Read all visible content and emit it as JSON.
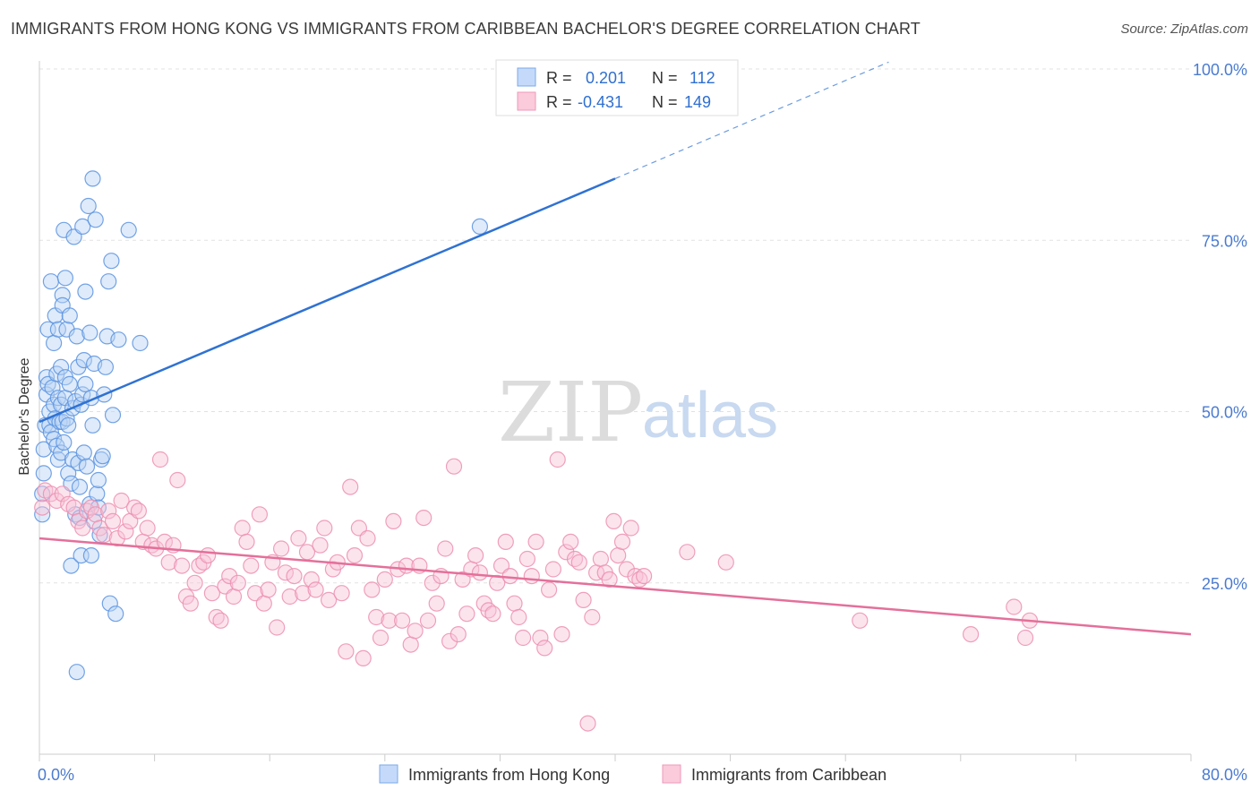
{
  "header": {
    "title": "IMMIGRANTS FROM HONG KONG VS IMMIGRANTS FROM CARIBBEAN BACHELOR'S DEGREE CORRELATION CHART",
    "source": "Source: ZipAtlas.com"
  },
  "watermark": {
    "zip": "ZIP",
    "atlas": "atlas"
  },
  "legend": {
    "r_label": "R =",
    "n_label": "N =",
    "rows": [
      {
        "r": "0.201",
        "n": "112",
        "color": "#6aa0e8",
        "fill": "#c5dafa"
      },
      {
        "r": "-0.431",
        "n": "149",
        "color": "#ec8fb0",
        "fill": "#fbcadb"
      }
    ]
  },
  "chart_data": {
    "type": "scatter",
    "title": "IMMIGRANTS FROM HONG KONG VS IMMIGRANTS FROM CARIBBEAN BACHELOR'S DEGREE CORRELATION CHART",
    "xlabel": "",
    "ylabel": "Bachelor's Degree",
    "xlim": [
      0,
      80
    ],
    "ylim": [
      0,
      105
    ],
    "x_ticks": [
      "0.0%",
      "80.0%"
    ],
    "y_ticks": [
      {
        "value": 25,
        "label": "25.0%"
      },
      {
        "value": 50,
        "label": "50.0%"
      },
      {
        "value": 75,
        "label": "75.0%"
      },
      {
        "value": 100,
        "label": "100.0%"
      }
    ],
    "grid": true,
    "legend_position": "top-center",
    "series": [
      {
        "name": "Immigrants from Hong Kong",
        "color": "#5b93e0",
        "fill": "#b9d2f5",
        "trend": {
          "x0": 0,
          "y0": 48.5,
          "x1": 40,
          "y1": 84,
          "dash_x1": 59,
          "dash_y1": 101
        },
        "points": [
          [
            0.2,
            38
          ],
          [
            0.2,
            35
          ],
          [
            0.3,
            44.5
          ],
          [
            0.3,
            41
          ],
          [
            0.4,
            48
          ],
          [
            0.5,
            52.5
          ],
          [
            0.5,
            55
          ],
          [
            0.6,
            54
          ],
          [
            0.6,
            62
          ],
          [
            0.7,
            48
          ],
          [
            0.7,
            50
          ],
          [
            0.8,
            69
          ],
          [
            0.8,
            47
          ],
          [
            0.9,
            53.5
          ],
          [
            1.0,
            60
          ],
          [
            1.0,
            51
          ],
          [
            1.0,
            46
          ],
          [
            1.1,
            64
          ],
          [
            1.1,
            49
          ],
          [
            1.2,
            55.5
          ],
          [
            1.2,
            45
          ],
          [
            1.3,
            52
          ],
          [
            1.3,
            43
          ],
          [
            1.3,
            62
          ],
          [
            1.4,
            48.5
          ],
          [
            1.5,
            44
          ],
          [
            1.5,
            56.5
          ],
          [
            1.5,
            51
          ],
          [
            1.6,
            67
          ],
          [
            1.6,
            65.5
          ],
          [
            1.6,
            48.5
          ],
          [
            1.7,
            76.5
          ],
          [
            1.7,
            45.5
          ],
          [
            1.8,
            69.5
          ],
          [
            1.8,
            52
          ],
          [
            1.8,
            55
          ],
          [
            1.9,
            62
          ],
          [
            1.9,
            49
          ],
          [
            2.0,
            48
          ],
          [
            2.0,
            41
          ],
          [
            2.1,
            64
          ],
          [
            2.1,
            54
          ],
          [
            2.2,
            39.5
          ],
          [
            2.2,
            27.5
          ],
          [
            2.3,
            50.5
          ],
          [
            2.3,
            43
          ],
          [
            2.4,
            75.5
          ],
          [
            2.5,
            51.5
          ],
          [
            2.5,
            35
          ],
          [
            2.6,
            12
          ],
          [
            2.6,
            61
          ],
          [
            2.7,
            56.5
          ],
          [
            2.7,
            42.5
          ],
          [
            2.8,
            39
          ],
          [
            2.8,
            34.5
          ],
          [
            2.9,
            51
          ],
          [
            2.9,
            29
          ],
          [
            3.0,
            77
          ],
          [
            3.0,
            52.5
          ],
          [
            3.1,
            57.5
          ],
          [
            3.1,
            44
          ],
          [
            3.2,
            67.5
          ],
          [
            3.2,
            54
          ],
          [
            3.3,
            42
          ],
          [
            3.4,
            80
          ],
          [
            3.5,
            61.5
          ],
          [
            3.5,
            36.5
          ],
          [
            3.6,
            52
          ],
          [
            3.6,
            29
          ],
          [
            3.7,
            84
          ],
          [
            3.7,
            48
          ],
          [
            3.8,
            57
          ],
          [
            3.8,
            34
          ],
          [
            3.9,
            78
          ],
          [
            4.0,
            38
          ],
          [
            4.1,
            36
          ],
          [
            4.1,
            40
          ],
          [
            4.2,
            32
          ],
          [
            4.3,
            43
          ],
          [
            4.4,
            43.5
          ],
          [
            4.5,
            52.5
          ],
          [
            4.6,
            56.5
          ],
          [
            4.7,
            61
          ],
          [
            4.8,
            69
          ],
          [
            4.9,
            22
          ],
          [
            5.0,
            72
          ],
          [
            5.1,
            49.5
          ],
          [
            5.3,
            20.5
          ],
          [
            5.5,
            60.5
          ],
          [
            6.2,
            76.5
          ],
          [
            7.0,
            60
          ],
          [
            30.6,
            77
          ]
        ]
      },
      {
        "name": "Immigrants from Caribbean",
        "color": "#ec8fb0",
        "fill": "#f8c4d6",
        "trend": {
          "x0": 0,
          "y0": 31.5,
          "x1": 80,
          "y1": 17.5
        },
        "points": [
          [
            0.2,
            36
          ],
          [
            0.4,
            38.5
          ],
          [
            0.8,
            38
          ],
          [
            1.2,
            37
          ],
          [
            1.6,
            38
          ],
          [
            2.0,
            36.5
          ],
          [
            2.4,
            36
          ],
          [
            2.7,
            34
          ],
          [
            3.0,
            33
          ],
          [
            3.3,
            35.5
          ],
          [
            3.6,
            36
          ],
          [
            3.9,
            35
          ],
          [
            4.2,
            33
          ],
          [
            4.5,
            32
          ],
          [
            4.8,
            35.5
          ],
          [
            5.1,
            34
          ],
          [
            5.4,
            31.5
          ],
          [
            5.7,
            37
          ],
          [
            6.0,
            32.5
          ],
          [
            6.3,
            34
          ],
          [
            6.6,
            36
          ],
          [
            6.9,
            35.5
          ],
          [
            7.2,
            31
          ],
          [
            7.5,
            33
          ],
          [
            7.8,
            30.5
          ],
          [
            8.1,
            30
          ],
          [
            8.4,
            43
          ],
          [
            8.7,
            31
          ],
          [
            9.0,
            28
          ],
          [
            9.3,
            30.5
          ],
          [
            9.6,
            40
          ],
          [
            9.9,
            27.5
          ],
          [
            10.2,
            23
          ],
          [
            10.5,
            22
          ],
          [
            10.8,
            25
          ],
          [
            11.1,
            27.5
          ],
          [
            11.4,
            28
          ],
          [
            11.7,
            29
          ],
          [
            12.0,
            23.5
          ],
          [
            12.3,
            20
          ],
          [
            12.6,
            19.5
          ],
          [
            12.9,
            24.5
          ],
          [
            13.2,
            26
          ],
          [
            13.5,
            23
          ],
          [
            13.8,
            25
          ],
          [
            14.1,
            33
          ],
          [
            14.4,
            31
          ],
          [
            14.7,
            27.5
          ],
          [
            15.0,
            23.5
          ],
          [
            15.3,
            35
          ],
          [
            15.6,
            22
          ],
          [
            15.9,
            24
          ],
          [
            16.2,
            28
          ],
          [
            16.5,
            18.5
          ],
          [
            16.8,
            30
          ],
          [
            17.1,
            26.5
          ],
          [
            17.4,
            23
          ],
          [
            17.7,
            26
          ],
          [
            18.0,
            31.5
          ],
          [
            18.3,
            23.5
          ],
          [
            18.6,
            29.5
          ],
          [
            18.9,
            25.5
          ],
          [
            19.2,
            24
          ],
          [
            19.5,
            30.5
          ],
          [
            19.8,
            33
          ],
          [
            20.1,
            22.5
          ],
          [
            20.4,
            27
          ],
          [
            20.7,
            28
          ],
          [
            21.0,
            23.5
          ],
          [
            21.3,
            15
          ],
          [
            21.6,
            39
          ],
          [
            21.9,
            29
          ],
          [
            22.2,
            33
          ],
          [
            22.5,
            14
          ],
          [
            22.8,
            31.5
          ],
          [
            23.1,
            24
          ],
          [
            23.4,
            20
          ],
          [
            23.7,
            17
          ],
          [
            24.0,
            25.5
          ],
          [
            24.3,
            19.5
          ],
          [
            24.6,
            34
          ],
          [
            24.9,
            27
          ],
          [
            25.2,
            19.5
          ],
          [
            25.5,
            27.5
          ],
          [
            25.8,
            16
          ],
          [
            26.1,
            18
          ],
          [
            26.4,
            27.5
          ],
          [
            26.7,
            34.5
          ],
          [
            27.0,
            19.5
          ],
          [
            27.3,
            25
          ],
          [
            27.6,
            22
          ],
          [
            27.9,
            26
          ],
          [
            28.2,
            30
          ],
          [
            28.5,
            16.5
          ],
          [
            28.8,
            42
          ],
          [
            29.1,
            17.5
          ],
          [
            29.4,
            25.5
          ],
          [
            29.7,
            20.5
          ],
          [
            30.0,
            27
          ],
          [
            30.3,
            29
          ],
          [
            30.6,
            26.5
          ],
          [
            30.9,
            22
          ],
          [
            31.2,
            21
          ],
          [
            31.5,
            20.5
          ],
          [
            31.8,
            25
          ],
          [
            32.1,
            27.5
          ],
          [
            32.4,
            31
          ],
          [
            32.7,
            26
          ],
          [
            33.0,
            22
          ],
          [
            33.3,
            20
          ],
          [
            33.6,
            17
          ],
          [
            33.9,
            28.5
          ],
          [
            34.2,
            26
          ],
          [
            34.5,
            31
          ],
          [
            34.8,
            17
          ],
          [
            35.1,
            15.5
          ],
          [
            35.4,
            24
          ],
          [
            35.7,
            27
          ],
          [
            36.0,
            43
          ],
          [
            36.3,
            17.5
          ],
          [
            36.6,
            29.5
          ],
          [
            36.9,
            31
          ],
          [
            37.2,
            28.5
          ],
          [
            37.5,
            28
          ],
          [
            37.8,
            22.5
          ],
          [
            38.1,
            4.5
          ],
          [
            38.4,
            20
          ],
          [
            38.7,
            26.5
          ],
          [
            39.0,
            28.5
          ],
          [
            39.3,
            26.5
          ],
          [
            39.6,
            25.5
          ],
          [
            39.9,
            34
          ],
          [
            40.2,
            29
          ],
          [
            40.5,
            31
          ],
          [
            40.8,
            27
          ],
          [
            41.1,
            33
          ],
          [
            41.4,
            26
          ],
          [
            41.7,
            25.5
          ],
          [
            42.0,
            26
          ],
          [
            45.0,
            29.5
          ],
          [
            47.7,
            28
          ],
          [
            57.0,
            19.5
          ],
          [
            64.7,
            17.5
          ],
          [
            67.7,
            21.5
          ],
          [
            68.5,
            17
          ],
          [
            68.8,
            19.5
          ]
        ]
      }
    ]
  },
  "bottom_legend": [
    {
      "label": "Immigrants from Hong Kong",
      "fill": "#c5dafa",
      "stroke": "#7aaae8"
    },
    {
      "label": "Immigrants from Caribbean",
      "fill": "#fbcadb",
      "stroke": "#ec9ab8"
    }
  ]
}
